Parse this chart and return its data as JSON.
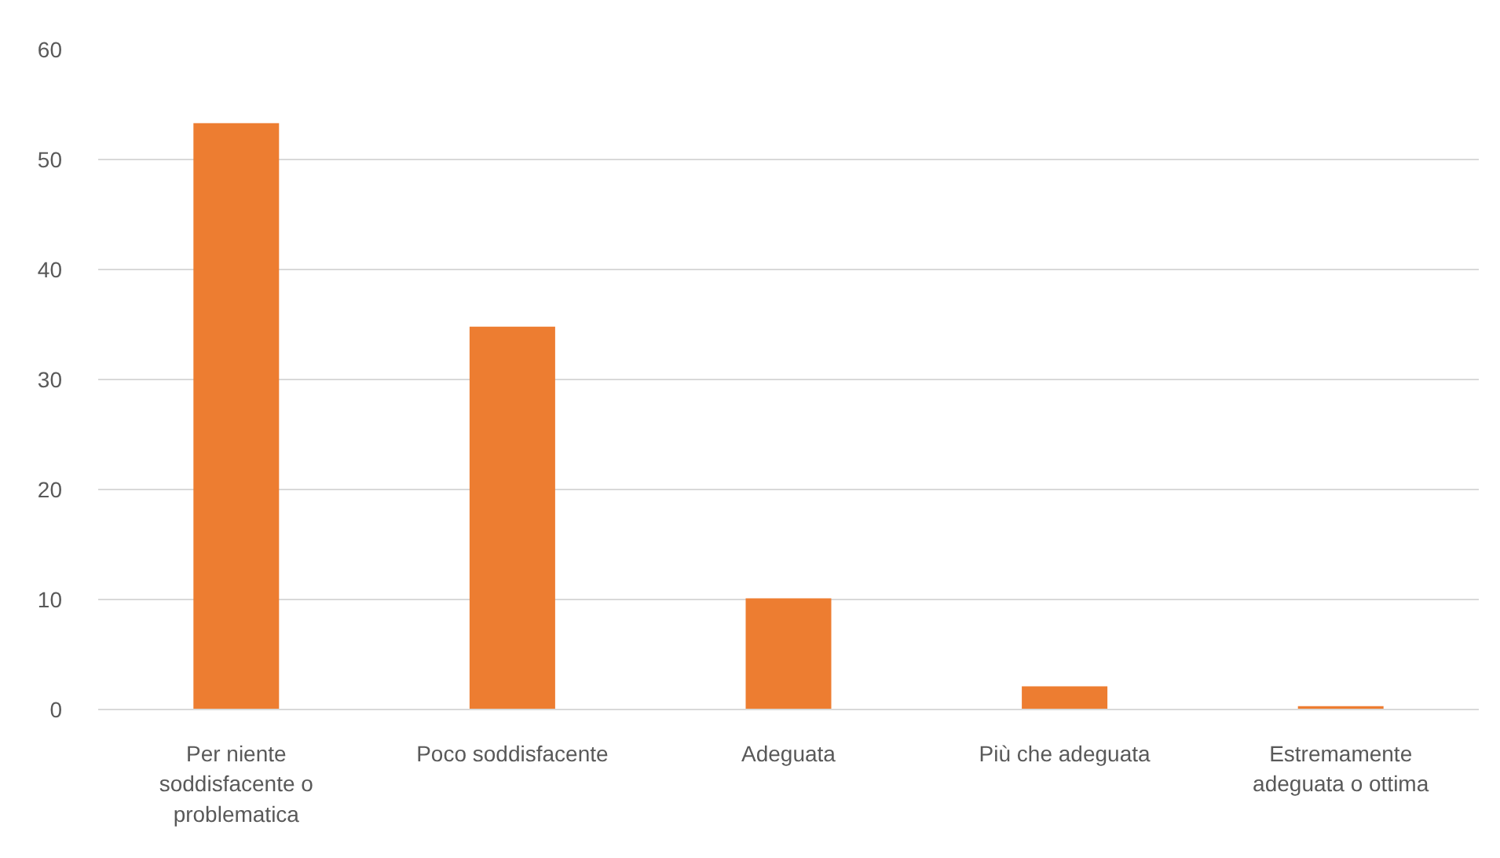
{
  "chart_data": {
    "type": "bar",
    "categories": [
      "Per niente soddisfacente o problematica",
      "Poco soddisfacente",
      "Adeguata",
      "Più che adeguata",
      "Estremamente adeguata o ottima"
    ],
    "values": [
      53.3,
      34.8,
      10.1,
      2.1,
      0.3
    ],
    "color": "#ed7d31",
    "ylim": [
      0,
      60
    ],
    "yticks": [
      0,
      10,
      20,
      30,
      40,
      50,
      60
    ],
    "grid": "y"
  }
}
